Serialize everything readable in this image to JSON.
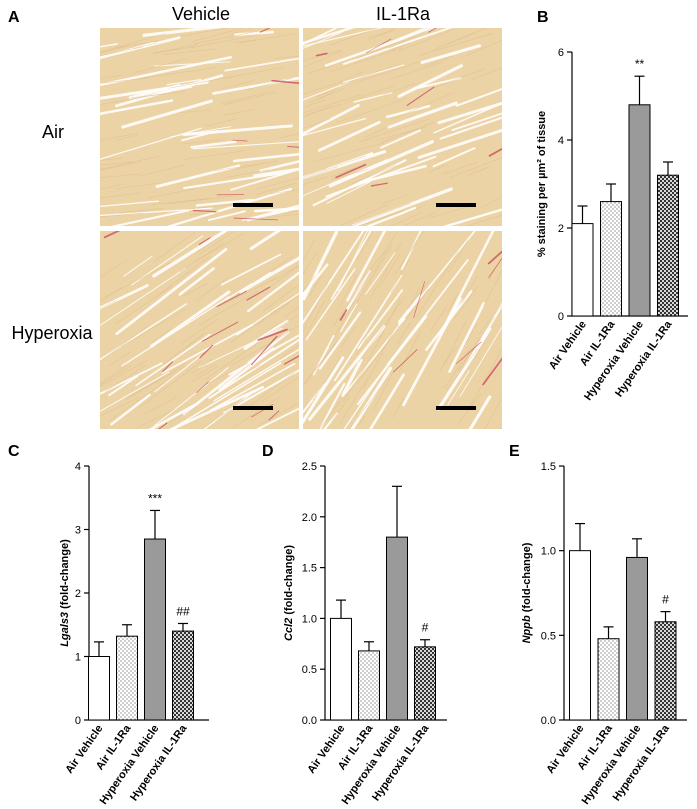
{
  "micrographs": {
    "panel_letter": "A",
    "columns": [
      "Vehicle",
      "IL-1Ra"
    ],
    "rows": [
      "Air",
      "Hyperoxia"
    ],
    "tissue_color": "#ecd3a5",
    "fiber_gap_color": "#ffffff",
    "collagen_stain_color": "#c8465a"
  },
  "chart_data": [
    {
      "panel": "B",
      "type": "bar",
      "ylabel": "% staining per µm² of tissue",
      "categories": [
        "Air Vehicle",
        "Air IL-1Ra",
        "Hyperoxia Vehicle",
        "Hyperoxia IL-1Ra"
      ],
      "values": [
        2.1,
        2.6,
        4.8,
        3.2
      ],
      "errors": [
        0.4,
        0.4,
        0.65,
        0.3
      ],
      "annotations": [
        "",
        "",
        "**",
        ""
      ],
      "ylim": [
        0,
        6
      ],
      "yticks": [
        0,
        2,
        4,
        6
      ],
      "tick_labels": [
        "0",
        "2",
        "4",
        "6"
      ]
    },
    {
      "panel": "C",
      "type": "bar",
      "ylabel_gene": "Lgals3",
      "ylabel_rest": " (fold-change)",
      "categories": [
        "Air Vehicle",
        "Air IL-1Ra",
        "Hyperoxia Vehicle",
        "Hyperoxia IL-1Ra"
      ],
      "values": [
        1.0,
        1.32,
        2.85,
        1.4
      ],
      "errors": [
        0.23,
        0.18,
        0.45,
        0.12
      ],
      "annotations": [
        "",
        "",
        "***",
        "##"
      ],
      "ylim": [
        0,
        4
      ],
      "yticks": [
        0,
        1,
        2,
        3,
        4
      ],
      "tick_labels": [
        "0",
        "1",
        "2",
        "3",
        "4"
      ]
    },
    {
      "panel": "D",
      "type": "bar",
      "ylabel_gene": "Ccl2",
      "ylabel_rest": " (fold-change)",
      "categories": [
        "Air Vehicle",
        "Air IL-1Ra",
        "Hyperoxia Vehicle",
        "Hyperoxia IL-1Ra"
      ],
      "values": [
        1.0,
        0.68,
        1.8,
        0.72
      ],
      "errors": [
        0.18,
        0.09,
        0.5,
        0.07
      ],
      "annotations": [
        "",
        "",
        "",
        "#"
      ],
      "ylim": [
        0,
        2.5
      ],
      "yticks": [
        0,
        0.5,
        1.0,
        1.5,
        2.0,
        2.5
      ],
      "tick_labels": [
        "0.0",
        "0.5",
        "1.0",
        "1.5",
        "2.0",
        "2.5"
      ]
    },
    {
      "panel": "E",
      "type": "bar",
      "ylabel_gene": "Nppb",
      "ylabel_rest": " (fold-change)",
      "categories": [
        "Air Vehicle",
        "Air IL-1Ra",
        "Hyperoxia Vehicle",
        "Hyperoxia IL-1Ra"
      ],
      "values": [
        1.0,
        0.48,
        0.96,
        0.58
      ],
      "errors": [
        0.16,
        0.07,
        0.11,
        0.06
      ],
      "annotations": [
        "",
        "",
        "",
        "#"
      ],
      "ylim": [
        0,
        1.5
      ],
      "yticks": [
        0,
        0.5,
        1.0,
        1.5
      ],
      "tick_labels": [
        "0.0",
        "0.5",
        "1.0",
        "1.5"
      ]
    }
  ]
}
